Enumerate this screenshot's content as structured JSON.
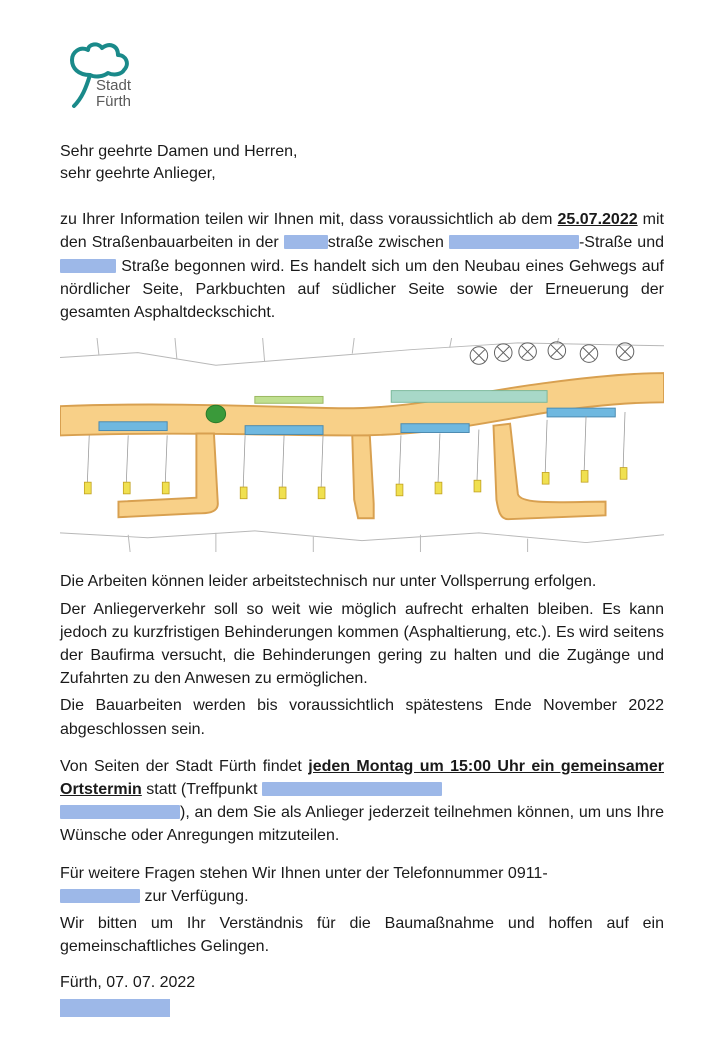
{
  "logo": {
    "line1": "Stadt",
    "line2": "Fürth",
    "clover_color": "#1a8a8a",
    "text_color": "#5a5a5a"
  },
  "salutation": {
    "line1": "Sehr geehrte Damen und Herren,",
    "line2": "sehr geehrte Anlieger,"
  },
  "intro": {
    "part1": "zu Ihrer Information teilen wir Ihnen mit, dass voraussichtlich ab dem ",
    "date": "25.07.2022",
    "part2": " mit den Straßenbauarbeiten in der ",
    "part3": "straße zwischen ",
    "part4": "-Straße und ",
    "part5": " Straße begonnen wird. Es handelt sich um den Neubau eines Gehwegs auf nördlicher Seite, Parkbuchten auf südlicher Seite sowie der Erneuerung der gesamten Asphaltdeckschicht.",
    "redact1_w": 44,
    "redact2_w": 130,
    "redact3_w": 56
  },
  "map": {
    "bg": "#ffffff",
    "parcel_stroke": "#b8b8b8",
    "road_fill": "#f8d088",
    "road_stroke": "#d8a050",
    "park_fill": "#6fb8e0",
    "green_fill": "#3a9a3a",
    "hatch_fill": "#a8d8c8",
    "grass_fill": "#c0e090",
    "marker_fill": "#f0e050",
    "tree_stroke": "#606060"
  },
  "body": {
    "p1": "Die Arbeiten können leider arbeitstechnisch nur unter Vollsperrung erfolgen.",
    "p2": "Der Anliegerverkehr soll so weit wie möglich aufrecht erhalten bleiben. Es kann jedoch zu kurzfristigen Behinderungen kommen (Asphaltierung, etc.). Es wird seitens der Baufirma versucht, die Behinderungen gering zu halten und die Zugänge und Zufahrten zu den Anwesen zu ermöglichen.",
    "p3": "Die Bauarbeiten werden bis voraussichtlich spätestens Ende November 2022 abgeschlossen sein."
  },
  "meeting": {
    "part1": "Von Seiten der Stadt Fürth findet ",
    "emph": "jeden Montag um 15:00 Uhr ein gemeinsamer Ortstermin",
    "part2": " statt (Treffpunkt ",
    "part3": "), an dem Sie als Anlieger jederzeit teilnehmen können, um uns Ihre Wünsche oder Anregungen mitzuteilen.",
    "redact1_w": 180,
    "redact2_w": 120
  },
  "contact": {
    "part1": "Für weitere Fragen stehen Wir Ihnen unter der Telefonnummer 0911-",
    "part2": " zur Verfügung.",
    "redact_w": 80
  },
  "closing": "Wir bitten um Ihr Verständnis für die Baumaßnahme und hoffen auf ein gemeinschaftliches Gelingen.",
  "signoff": {
    "place_date": "Fürth, 07. 07. 2022"
  }
}
